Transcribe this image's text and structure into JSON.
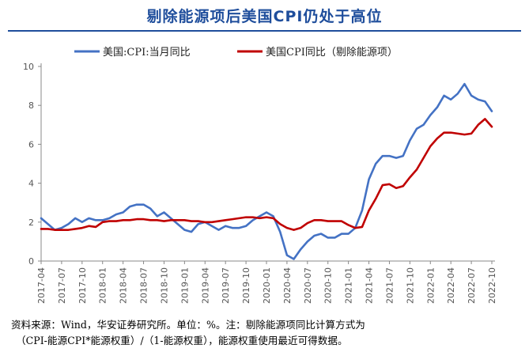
{
  "title": "剔除能源项后美国CPI仍处于高位",
  "footnote": {
    "line1": "资料来源：Wind，华安证券研究所。单位：%。注：剔除能源项同比计算方式为",
    "line2": "（CPI-能源CPI*能源权重）/（1-能源权重），能源权重使用最近可得数据。"
  },
  "chart_data": {
    "type": "line",
    "title": "",
    "xlabel": "",
    "ylabel": "",
    "ylim": [
      0,
      10
    ],
    "yticks": [
      0,
      2,
      4,
      6,
      8,
      10
    ],
    "grid": false,
    "legend_position": "top",
    "x": [
      "2017-04",
      "2017-05",
      "2017-06",
      "2017-07",
      "2017-08",
      "2017-09",
      "2017-10",
      "2017-11",
      "2017-12",
      "2018-01",
      "2018-02",
      "2018-03",
      "2018-04",
      "2018-05",
      "2018-06",
      "2018-07",
      "2018-08",
      "2018-09",
      "2018-10",
      "2018-11",
      "2018-12",
      "2019-01",
      "2019-02",
      "2019-03",
      "2019-04",
      "2019-05",
      "2019-06",
      "2019-07",
      "2019-08",
      "2019-09",
      "2019-10",
      "2019-11",
      "2019-12",
      "2020-01",
      "2020-02",
      "2020-03",
      "2020-04",
      "2020-05",
      "2020-06",
      "2020-07",
      "2020-08",
      "2020-09",
      "2020-10",
      "2020-11",
      "2020-12",
      "2021-01",
      "2021-02",
      "2021-03",
      "2021-04",
      "2021-05",
      "2021-06",
      "2021-07",
      "2021-08",
      "2021-09",
      "2021-10",
      "2021-11",
      "2021-12",
      "2022-01",
      "2022-02",
      "2022-03",
      "2022-04",
      "2022-05",
      "2022-06",
      "2022-07",
      "2022-08",
      "2022-09",
      "2022-10"
    ],
    "x_tick_labels": [
      "2017-04",
      "2017-07",
      "2017-10",
      "2018-01",
      "2018-04",
      "2018-07",
      "2018-10",
      "2019-01",
      "2019-04",
      "2019-07",
      "2019-10",
      "2020-01",
      "2020-04",
      "2020-07",
      "2020-10",
      "2021-01",
      "2021-04",
      "2021-07",
      "2021-10",
      "2022-01",
      "2022-04",
      "2022-07",
      "2022-10"
    ],
    "series": [
      {
        "name": "美国:CPI:当月同比",
        "color": "#4472c4",
        "values": [
          2.2,
          1.9,
          1.6,
          1.7,
          1.9,
          2.2,
          2.0,
          2.2,
          2.1,
          2.1,
          2.2,
          2.4,
          2.5,
          2.8,
          2.9,
          2.9,
          2.7,
          2.3,
          2.5,
          2.2,
          1.9,
          1.6,
          1.5,
          1.9,
          2.0,
          1.8,
          1.6,
          1.8,
          1.7,
          1.7,
          1.8,
          2.1,
          2.3,
          2.5,
          2.3,
          1.5,
          0.3,
          0.1,
          0.6,
          1.0,
          1.3,
          1.4,
          1.2,
          1.2,
          1.4,
          1.4,
          1.7,
          2.6,
          4.2,
          5.0,
          5.4,
          5.4,
          5.3,
          5.4,
          6.2,
          6.8,
          7.0,
          7.5,
          7.9,
          8.5,
          8.3,
          8.6,
          9.1,
          8.5,
          8.3,
          8.2,
          7.7
        ]
      },
      {
        "name": "美国CPI同比（剔除能源项）",
        "color": "#c00000",
        "values": [
          1.65,
          1.65,
          1.6,
          1.6,
          1.6,
          1.65,
          1.7,
          1.8,
          1.75,
          2.0,
          2.05,
          2.05,
          2.1,
          2.1,
          2.15,
          2.15,
          2.1,
          2.1,
          2.05,
          2.1,
          2.1,
          2.1,
          2.05,
          2.05,
          2.0,
          2.0,
          2.05,
          2.1,
          2.15,
          2.2,
          2.25,
          2.25,
          2.2,
          2.25,
          2.2,
          1.9,
          1.7,
          1.6,
          1.7,
          1.95,
          2.1,
          2.1,
          2.05,
          2.05,
          2.05,
          1.85,
          1.7,
          1.75,
          2.6,
          3.2,
          3.9,
          3.95,
          3.75,
          3.85,
          4.3,
          4.7,
          5.3,
          5.9,
          6.3,
          6.6,
          6.6,
          6.55,
          6.5,
          6.55,
          7.0,
          7.3,
          6.9
        ]
      }
    ]
  }
}
